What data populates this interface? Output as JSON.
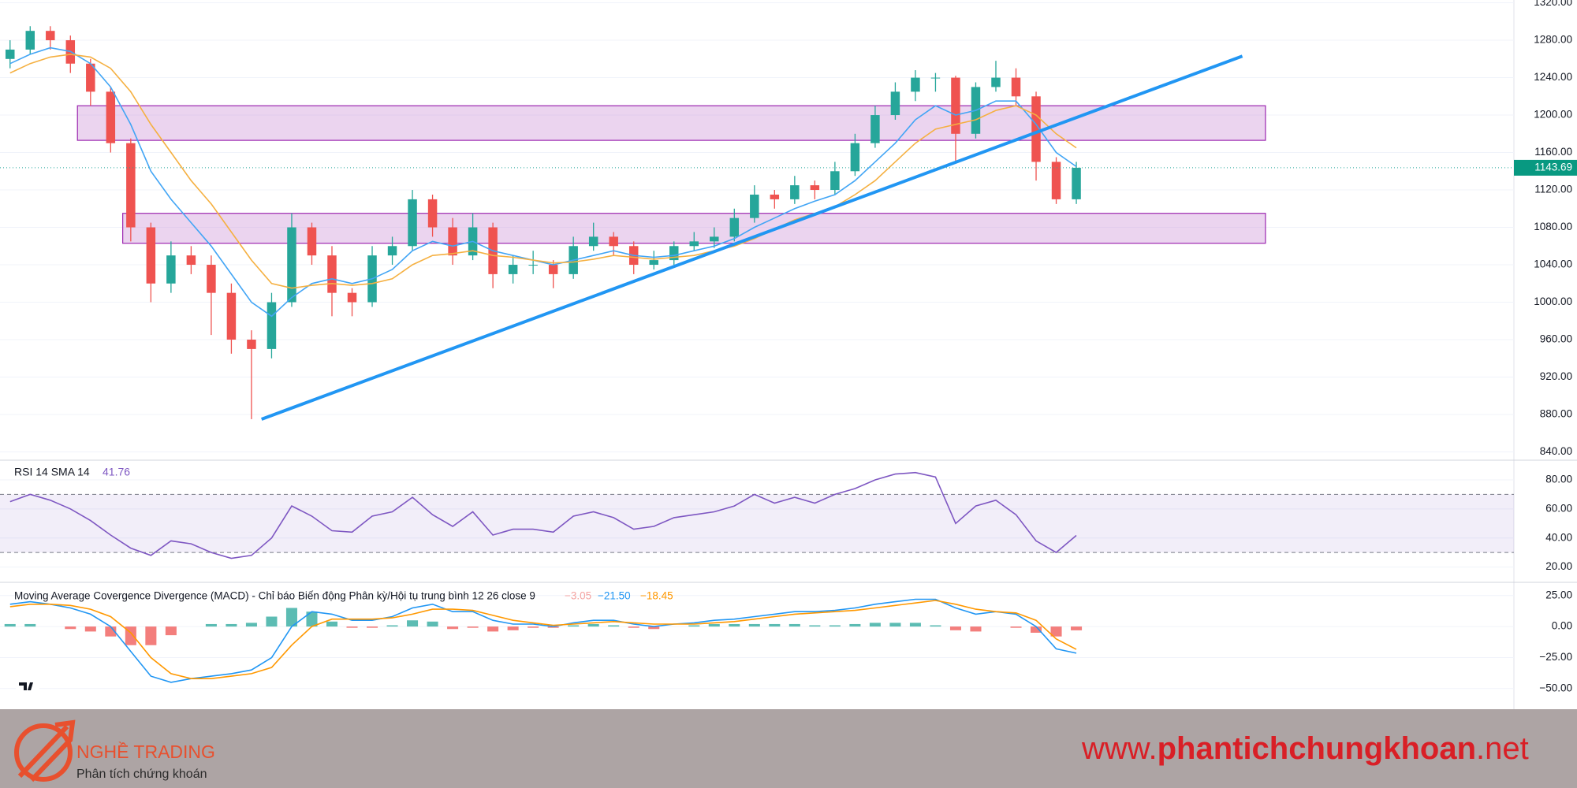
{
  "chart_data": [
    {
      "type": "candlestick",
      "xlim": [
        -0.5,
        74.75
      ],
      "ylim": [
        832,
        1323
      ],
      "yticks": [
        {
          "value": 840,
          "label": "840.00"
        },
        {
          "value": 880,
          "label": "880.00"
        },
        {
          "value": 920,
          "label": "920.00"
        },
        {
          "value": 960,
          "label": "960.00"
        },
        {
          "value": 1000,
          "label": "1000.00"
        },
        {
          "value": 1040,
          "label": "1040.00"
        },
        {
          "value": 1080,
          "label": "1080.00"
        },
        {
          "value": 1120,
          "label": "1120.00"
        },
        {
          "value": 1160,
          "label": "1160.00"
        },
        {
          "value": 1200,
          "label": "1200.00"
        },
        {
          "value": 1240,
          "label": "1240.00"
        },
        {
          "value": 1280,
          "label": "1280.00"
        },
        {
          "value": 1320,
          "label": "1320.00"
        }
      ],
      "grid": true,
      "up_color": "#26a69a",
      "down_color": "#ef5350",
      "candles": [
        [
          1260,
          1280,
          1250,
          1270
        ],
        [
          1270,
          1295,
          1265,
          1290
        ],
        [
          1290,
          1295,
          1270,
          1280
        ],
        [
          1280,
          1285,
          1245,
          1255
        ],
        [
          1255,
          1260,
          1210,
          1225
        ],
        [
          1225,
          1230,
          1160,
          1170
        ],
        [
          1170,
          1175,
          1065,
          1080
        ],
        [
          1080,
          1085,
          1000,
          1020
        ],
        [
          1020,
          1065,
          1010,
          1050
        ],
        [
          1050,
          1060,
          1030,
          1040
        ],
        [
          1040,
          1050,
          965,
          1010
        ],
        [
          1010,
          1020,
          945,
          960
        ],
        [
          960,
          970,
          875,
          950
        ],
        [
          950,
          1010,
          940,
          1000
        ],
        [
          1000,
          1095,
          995,
          1080
        ],
        [
          1080,
          1085,
          1040,
          1050
        ],
        [
          1050,
          1060,
          985,
          1010
        ],
        [
          1010,
          1015,
          985,
          1000
        ],
        [
          1000,
          1060,
          995,
          1050
        ],
        [
          1050,
          1070,
          1040,
          1060
        ],
        [
          1060,
          1120,
          1055,
          1110
        ],
        [
          1110,
          1115,
          1070,
          1080
        ],
        [
          1080,
          1090,
          1040,
          1050
        ],
        [
          1050,
          1095,
          1045,
          1080
        ],
        [
          1080,
          1085,
          1015,
          1030
        ],
        [
          1030,
          1050,
          1020,
          1040
        ],
        [
          1040,
          1055,
          1030,
          1040
        ],
        [
          1040,
          1045,
          1015,
          1030
        ],
        [
          1030,
          1070,
          1025,
          1060
        ],
        [
          1060,
          1085,
          1055,
          1070
        ],
        [
          1070,
          1075,
          1050,
          1060
        ],
        [
          1060,
          1065,
          1030,
          1040
        ],
        [
          1040,
          1055,
          1035,
          1045
        ],
        [
          1045,
          1065,
          1040,
          1060
        ],
        [
          1060,
          1075,
          1055,
          1065
        ],
        [
          1065,
          1080,
          1058,
          1070
        ],
        [
          1070,
          1100,
          1065,
          1090
        ],
        [
          1090,
          1125,
          1085,
          1115
        ],
        [
          1115,
          1120,
          1100,
          1110
        ],
        [
          1110,
          1135,
          1105,
          1125
        ],
        [
          1125,
          1130,
          1110,
          1120
        ],
        [
          1120,
          1150,
          1115,
          1140
        ],
        [
          1140,
          1180,
          1135,
          1170
        ],
        [
          1170,
          1210,
          1165,
          1200
        ],
        [
          1200,
          1235,
          1195,
          1225
        ],
        [
          1225,
          1248,
          1215,
          1240
        ],
        [
          1240,
          1245,
          1225,
          1240
        ],
        [
          1240,
          1242,
          1150,
          1180
        ],
        [
          1180,
          1235,
          1175,
          1230
        ],
        [
          1230,
          1258,
          1225,
          1240
        ],
        [
          1240,
          1250,
          1210,
          1220
        ],
        [
          1220,
          1225,
          1130,
          1150
        ],
        [
          1150,
          1155,
          1105,
          1110
        ],
        [
          1110,
          1150,
          1105,
          1143.69
        ]
      ],
      "series": [
        {
          "color": "#42a5f5",
          "values": [
            1255,
            1265,
            1272,
            1268,
            1255,
            1230,
            1190,
            1140,
            1110,
            1085,
            1060,
            1030,
            1000,
            985,
            1005,
            1020,
            1025,
            1020,
            1025,
            1035,
            1055,
            1065,
            1060,
            1065,
            1055,
            1050,
            1045,
            1040,
            1045,
            1050,
            1055,
            1050,
            1048,
            1050,
            1055,
            1060,
            1068,
            1080,
            1090,
            1100,
            1108,
            1115,
            1130,
            1150,
            1170,
            1195,
            1210,
            1200,
            1205,
            1215,
            1215,
            1190,
            1160,
            1145
          ]
        },
        {
          "color": "#f5b041",
          "values": [
            1245,
            1255,
            1262,
            1265,
            1262,
            1250,
            1225,
            1190,
            1160,
            1130,
            1105,
            1075,
            1045,
            1020,
            1015,
            1018,
            1020,
            1018,
            1020,
            1025,
            1040,
            1050,
            1052,
            1055,
            1050,
            1048,
            1045,
            1042,
            1043,
            1046,
            1050,
            1048,
            1046,
            1048,
            1050,
            1055,
            1060,
            1068,
            1078,
            1088,
            1095,
            1102,
            1115,
            1130,
            1150,
            1170,
            1185,
            1190,
            1195,
            1205,
            1210,
            1200,
            1180,
            1165
          ]
        }
      ],
      "zone_color": "#ce93d8",
      "zones": [
        {
          "x": [
            3.35,
            62.4
          ],
          "y": [
            1173,
            1210
          ]
        },
        {
          "x": [
            5.6,
            62.4
          ],
          "y": [
            1063,
            1095
          ]
        }
      ],
      "trendline": {
        "x": [
          12.5,
          61.25
        ],
        "y": [
          875,
          1263
        ],
        "color": "#2196f3"
      }
    },
    {
      "type": "line",
      "title": "RSI 14 SMA 14",
      "xlim": [
        -0.5,
        74.75
      ],
      "ylim": [
        10,
        93
      ],
      "yticks": [
        {
          "value": 20,
          "label": "20.00"
        },
        {
          "value": 40,
          "label": "40.00"
        },
        {
          "value": 60,
          "label": "60.00"
        },
        {
          "value": 80,
          "label": "80.00"
        }
      ],
      "bands": [
        30,
        70
      ],
      "band_color": "#7e57c2",
      "series": [
        {
          "color": "#7e57c2",
          "values": [
            65,
            70,
            66,
            60,
            52,
            42,
            33,
            28,
            38,
            36,
            30,
            26,
            28,
            40,
            62,
            55,
            45,
            44,
            55,
            58,
            68,
            56,
            48,
            58,
            42,
            46,
            46,
            44,
            55,
            58,
            54,
            46,
            48,
            54,
            56,
            58,
            62,
            70,
            64,
            68,
            64,
            70,
            74,
            80,
            84,
            85,
            82,
            50,
            62,
            66,
            56,
            38,
            30,
            41.76
          ]
        }
      ]
    },
    {
      "type": "combo",
      "title": "Moving Average Covergence Divergence (MACD) - Chỉ báo Biến động Phân kỳ/Hội tụ trung bình 12 26 close 9",
      "legend_values": [
        "−3.05",
        "−21.50",
        "−18.45"
      ],
      "xlim": [
        -0.5,
        74.75
      ],
      "ylim": [
        -66,
        35
      ],
      "yticks": [
        {
          "value": -50,
          "label": "−50.00"
        },
        {
          "value": -25,
          "label": "−25.00"
        },
        {
          "value": 0,
          "label": "0.00"
        },
        {
          "value": 25,
          "label": "25.00"
        }
      ],
      "histogram_colors": [
        "#26a69a",
        "#ef5350"
      ],
      "histogram": [
        2,
        2,
        0,
        -2,
        -4,
        -8,
        -15,
        -15,
        -7,
        0,
        2,
        2,
        3,
        8,
        15,
        12,
        4,
        -1,
        -1,
        1,
        5,
        4,
        -2,
        -1,
        -4,
        -3,
        -1,
        -1,
        1,
        2,
        1,
        -1,
        -2,
        0,
        1,
        2,
        2,
        2,
        2,
        2,
        1,
        1,
        2,
        3,
        3,
        3,
        1,
        -3,
        -4,
        0,
        -1,
        -5,
        -8,
        -3.05
      ],
      "series": [
        {
          "color": "#2196f3",
          "values": [
            18,
            20,
            18,
            15,
            10,
            0,
            -20,
            -40,
            -45,
            -42,
            -40,
            -38,
            -35,
            -25,
            0,
            12,
            10,
            5,
            5,
            8,
            15,
            18,
            12,
            12,
            5,
            2,
            2,
            0,
            3,
            5,
            5,
            2,
            0,
            2,
            3,
            5,
            6,
            8,
            10,
            12,
            12,
            13,
            15,
            18,
            20,
            22,
            22,
            15,
            10,
            12,
            10,
            0,
            -18,
            -21.5
          ]
        },
        {
          "color": "#ff9800",
          "values": [
            16,
            18,
            18,
            17,
            14,
            8,
            -5,
            -25,
            -38,
            -42,
            -42,
            -40,
            -38,
            -33,
            -15,
            0,
            6,
            6,
            6,
            7,
            10,
            14,
            14,
            13,
            9,
            5,
            3,
            1,
            2,
            3,
            4,
            3,
            2,
            2,
            2,
            3,
            4,
            6,
            8,
            10,
            11,
            12,
            13,
            15,
            17,
            19,
            21,
            18,
            14,
            12,
            11,
            5,
            -10,
            -18.45
          ]
        }
      ]
    }
  ],
  "footer": {
    "brand": "NGHỀ TRADING",
    "tagline": "Phân tích chứng khoán",
    "site_prefix": "www.",
    "site_name": "phantichchungkhoan",
    "site_suffix": ".net"
  }
}
